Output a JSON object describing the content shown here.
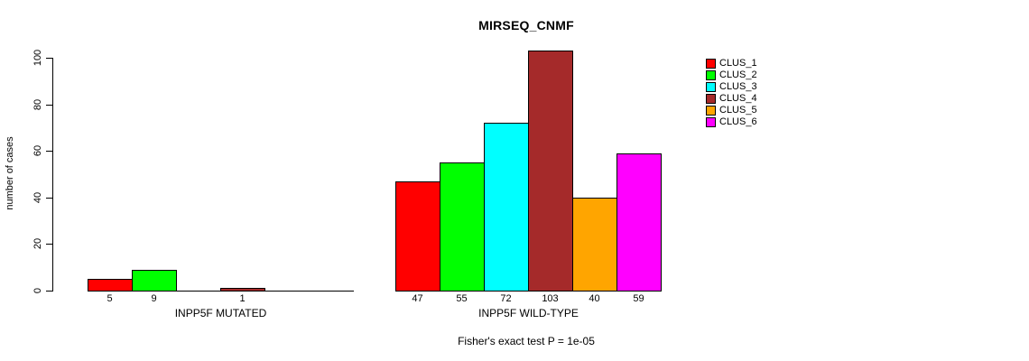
{
  "title": "MIRSEQ_CNMF",
  "chart_data": {
    "type": "bar",
    "title": "MIRSEQ_CNMF",
    "ylabel": "number of cases",
    "xlabel": "",
    "ylim": [
      0,
      100
    ],
    "yticks": [
      0,
      20,
      40,
      60,
      80,
      100
    ],
    "grid": false,
    "legend_position": "right",
    "series_names": [
      "CLUS_1",
      "CLUS_2",
      "CLUS_3",
      "CLUS_4",
      "CLUS_5",
      "CLUS_6"
    ],
    "colors": [
      "#FF0000",
      "#00FF00",
      "#00FFFF",
      "#A52A2A",
      "#FFA500",
      "#FF00FF"
    ],
    "groups": [
      {
        "label": "INPP5F MUTATED",
        "values": [
          5,
          9,
          0,
          1,
          0,
          0
        ]
      },
      {
        "label": "INPP5F WILD-TYPE",
        "values": [
          47,
          55,
          72,
          103,
          40,
          59
        ]
      }
    ],
    "value_labels_note": "counts printed below each nonzero bar",
    "annotation": "Fisher's exact test P = 1e-05"
  },
  "legend": {
    "items": [
      {
        "label": "CLUS_1",
        "color": "#FF0000"
      },
      {
        "label": "CLUS_2",
        "color": "#00FF00"
      },
      {
        "label": "CLUS_3",
        "color": "#00FFFF"
      },
      {
        "label": "CLUS_4",
        "color": "#A52A2A"
      },
      {
        "label": "CLUS_5",
        "color": "#FFA500"
      },
      {
        "label": "CLUS_6",
        "color": "#FF00FF"
      }
    ]
  }
}
